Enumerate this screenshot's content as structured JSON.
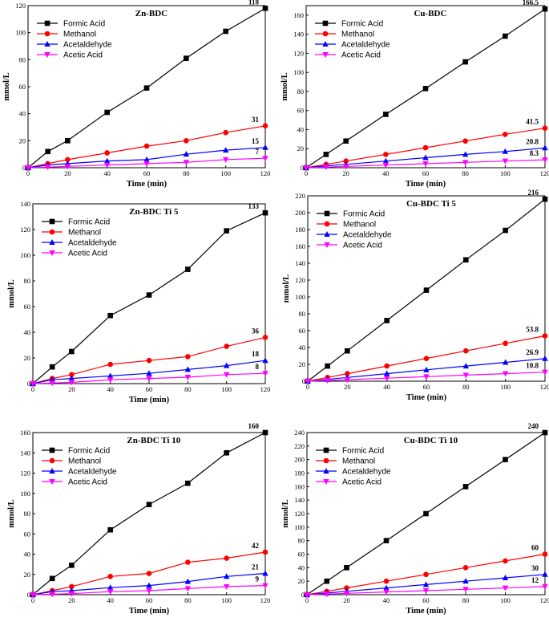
{
  "legend_order": [
    "Formic Acid",
    "Methanol",
    "Acetaldehyde",
    "Acetic Acid"
  ],
  "series_colors": {
    "Formic Acid": "#000000",
    "Methanol": "#ff0000",
    "Acetaldehyde": "#0000ff",
    "Acetic Acid": "#ff00ff"
  },
  "series_markers": {
    "Formic Acid": "square",
    "Methanol": "circle",
    "Acetaldehyde": "triangle-up",
    "Acetic Acid": "triangle-down"
  },
  "chart_data": [
    {
      "type": "line",
      "title": "Zn-BDC",
      "xlabel": "Time (min)",
      "ylabel": "mmol/L",
      "x": [
        0,
        10,
        20,
        40,
        60,
        80,
        100,
        120
      ],
      "xlim": [
        0,
        120
      ],
      "ylim": [
        0,
        120
      ],
      "xticks": [
        0,
        20,
        40,
        60,
        80,
        100,
        120
      ],
      "yticks": [
        0,
        20,
        40,
        60,
        80,
        100,
        120
      ],
      "series": [
        {
          "name": "Formic Acid",
          "values": [
            0,
            12,
            20,
            41,
            59,
            81,
            101,
            118
          ],
          "end_label": "118"
        },
        {
          "name": "Methanol",
          "values": [
            0,
            3,
            6,
            11,
            16,
            20,
            26,
            31
          ],
          "end_label": "31"
        },
        {
          "name": "Acetaldehyde",
          "values": [
            0,
            2,
            3,
            5,
            6,
            10,
            13,
            15
          ],
          "end_label": "15"
        },
        {
          "name": "Acetic Acid",
          "values": [
            0,
            0.5,
            1,
            2,
            3,
            4,
            6,
            7
          ],
          "end_label": "7"
        }
      ]
    },
    {
      "type": "line",
      "title": "Cu-BDC",
      "xlabel": "Time (min)",
      "ylabel": "mmol/L",
      "x": [
        0,
        10,
        20,
        40,
        60,
        80,
        100,
        120
      ],
      "xlim": [
        0,
        120
      ],
      "ylim": [
        0,
        170
      ],
      "xticks": [
        0,
        20,
        40,
        60,
        80,
        100,
        120
      ],
      "yticks": [
        0,
        20,
        40,
        60,
        80,
        100,
        120,
        140,
        160
      ],
      "series": [
        {
          "name": "Formic Acid",
          "values": [
            0,
            14,
            28,
            56,
            83,
            111,
            138,
            166.5
          ],
          "end_label": "166.5"
        },
        {
          "name": "Methanol",
          "values": [
            0,
            3.5,
            7,
            14,
            21,
            28,
            35,
            41.5
          ],
          "end_label": "41.5"
        },
        {
          "name": "Acetaldehyde",
          "values": [
            0,
            2,
            3.5,
            7,
            10.5,
            14,
            17,
            20.8
          ],
          "end_label": "20.8"
        },
        {
          "name": "Acetic Acid",
          "values": [
            0,
            0.7,
            1.4,
            2.8,
            4.2,
            5.6,
            7,
            8.3
          ],
          "end_label": "8.3"
        }
      ]
    },
    {
      "type": "line",
      "title": "Zn-BDC Ti 5",
      "xlabel": "Time (min)",
      "ylabel": "mmol/L",
      "x": [
        0,
        10,
        20,
        40,
        60,
        80,
        100,
        120
      ],
      "xlim": [
        0,
        120
      ],
      "ylim": [
        0,
        140
      ],
      "xticks": [
        0,
        20,
        40,
        60,
        80,
        100,
        120
      ],
      "yticks": [
        0,
        20,
        40,
        60,
        80,
        100,
        120,
        140
      ],
      "series": [
        {
          "name": "Formic Acid",
          "values": [
            0,
            13,
            25,
            53,
            69,
            89,
            119,
            133
          ],
          "end_label": "133"
        },
        {
          "name": "Methanol",
          "values": [
            0,
            4,
            7,
            15,
            18,
            21,
            29,
            36
          ],
          "end_label": "36"
        },
        {
          "name": "Acetaldehyde",
          "values": [
            0,
            3,
            4,
            6,
            8,
            11,
            14,
            18
          ],
          "end_label": "18"
        },
        {
          "name": "Acetic Acid",
          "values": [
            0,
            0.5,
            1,
            3,
            4,
            5,
            7,
            8
          ],
          "end_label": "8"
        }
      ]
    },
    {
      "type": "line",
      "title": "Cu-BDC Ti 5",
      "xlabel": "Time (min)",
      "ylabel": "mmol/L",
      "x": [
        0,
        10,
        20,
        40,
        60,
        80,
        100,
        120
      ],
      "xlim": [
        0,
        120
      ],
      "ylim": [
        0,
        220
      ],
      "xticks": [
        0,
        20,
        40,
        60,
        80,
        100,
        120
      ],
      "yticks": [
        0,
        20,
        40,
        60,
        80,
        100,
        120,
        140,
        160,
        180,
        200,
        220
      ],
      "series": [
        {
          "name": "Formic Acid",
          "values": [
            0,
            18,
            36,
            72,
            108,
            144,
            179,
            216
          ],
          "end_label": "216"
        },
        {
          "name": "Methanol",
          "values": [
            0,
            4.5,
            9,
            18,
            27,
            36,
            45,
            53.8
          ],
          "end_label": "53.8"
        },
        {
          "name": "Acetaldehyde",
          "values": [
            0,
            2.2,
            4.5,
            9,
            13.5,
            18,
            22.4,
            26.9
          ],
          "end_label": "26.9"
        },
        {
          "name": "Acetic Acid",
          "values": [
            0,
            0.9,
            1.8,
            3.6,
            5.4,
            7.2,
            9,
            10.8
          ],
          "end_label": "10.8"
        }
      ]
    },
    {
      "type": "line",
      "title": "Zn-BDC Ti 10",
      "xlabel": "Time (min)",
      "ylabel": "mmol/L",
      "x": [
        0,
        10,
        20,
        40,
        60,
        80,
        100,
        120
      ],
      "xlim": [
        0,
        120
      ],
      "ylim": [
        0,
        160
      ],
      "xticks": [
        0,
        20,
        40,
        60,
        80,
        100,
        120
      ],
      "yticks": [
        0,
        20,
        40,
        60,
        80,
        100,
        120,
        140,
        160
      ],
      "series": [
        {
          "name": "Formic Acid",
          "values": [
            0,
            16,
            29,
            64,
            89,
            110,
            140,
            160
          ],
          "end_label": "160"
        },
        {
          "name": "Methanol",
          "values": [
            0,
            4,
            8,
            18,
            21,
            32,
            36,
            42
          ],
          "end_label": "42"
        },
        {
          "name": "Acetaldehyde",
          "values": [
            0,
            3,
            4,
            7,
            9,
            13,
            18,
            21
          ],
          "end_label": "21"
        },
        {
          "name": "Acetic Acid",
          "values": [
            0,
            0.5,
            1,
            3,
            4,
            6,
            8,
            9
          ],
          "end_label": "9"
        }
      ]
    },
    {
      "type": "line",
      "title": "Cu-BDC Ti 10",
      "xlabel": "Time (min)",
      "ylabel": "mmol/L",
      "x": [
        0,
        10,
        20,
        40,
        60,
        80,
        100,
        120
      ],
      "xlim": [
        0,
        120
      ],
      "ylim": [
        0,
        240
      ],
      "xticks": [
        0,
        20,
        40,
        60,
        80,
        100,
        120
      ],
      "yticks": [
        0,
        20,
        40,
        60,
        80,
        100,
        120,
        140,
        160,
        180,
        200,
        220,
        240
      ],
      "series": [
        {
          "name": "Formic Acid",
          "values": [
            0,
            20,
            40,
            80,
            120,
            160,
            200,
            240
          ],
          "end_label": "240"
        },
        {
          "name": "Methanol",
          "values": [
            0,
            5,
            10,
            20,
            30,
            40,
            50,
            60
          ],
          "end_label": "60"
        },
        {
          "name": "Acetaldehyde",
          "values": [
            0,
            2.5,
            5,
            10,
            15,
            20,
            25,
            30
          ],
          "end_label": "30"
        },
        {
          "name": "Acetic Acid",
          "values": [
            0,
            1,
            2,
            4,
            6,
            8,
            10,
            12
          ],
          "end_label": "12"
        }
      ]
    }
  ]
}
